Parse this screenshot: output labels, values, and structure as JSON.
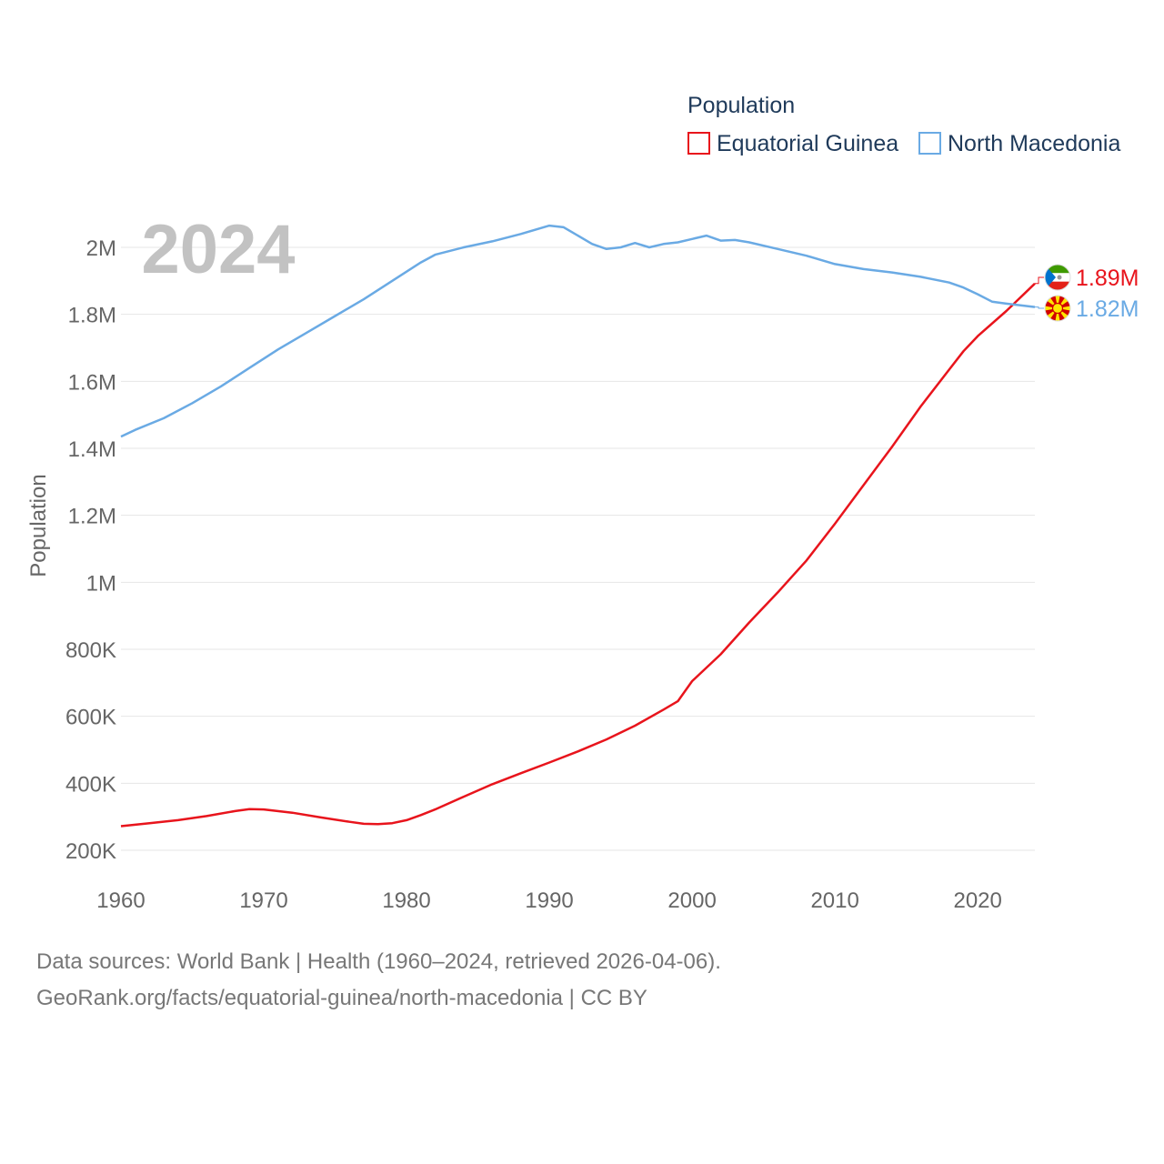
{
  "colors": {
    "eq_guinea": "#e8141c",
    "n_macedonia": "#6aaae4",
    "grid": "#e6e6e6",
    "text": "#666666"
  },
  "footer": {
    "line1": "Data sources: World Bank | Health (1960–2024, retrieved 2026-04-06).",
    "line2": "GeoRank.org/facts/equatorial-guinea/north-macedonia | CC BY"
  },
  "chart_data": {
    "type": "line",
    "title": "",
    "current_year": "2024",
    "xlabel": "",
    "ylabel": "Population",
    "legend_title": "Population",
    "legend_position": "top-right",
    "xlim": [
      1960,
      2024
    ],
    "ylim": [
      200000,
      2100000
    ],
    "x_ticks": [
      1960,
      1970,
      1980,
      1990,
      2000,
      2010,
      2020
    ],
    "y_ticks": [
      {
        "value": 200000,
        "label": "200K"
      },
      {
        "value": 400000,
        "label": "400K"
      },
      {
        "value": 600000,
        "label": "600K"
      },
      {
        "value": 800000,
        "label": "800K"
      },
      {
        "value": 1000000,
        "label": "1M"
      },
      {
        "value": 1200000,
        "label": "1.2M"
      },
      {
        "value": 1400000,
        "label": "1.4M"
      },
      {
        "value": 1600000,
        "label": "1.6M"
      },
      {
        "value": 1800000,
        "label": "1.8M"
      },
      {
        "value": 2000000,
        "label": "2M"
      }
    ],
    "grid": true,
    "series": [
      {
        "name": "Equatorial Guinea",
        "color": "#e8141c",
        "end_label": "1.89M",
        "flag": "equatorial-guinea-flag-icon",
        "points": [
          [
            1960,
            272000
          ],
          [
            1962,
            281000
          ],
          [
            1964,
            290000
          ],
          [
            1966,
            302000
          ],
          [
            1968,
            317000
          ],
          [
            1969,
            323000
          ],
          [
            1970,
            322000
          ],
          [
            1972,
            312000
          ],
          [
            1974,
            298000
          ],
          [
            1976,
            285000
          ],
          [
            1977,
            279000
          ],
          [
            1978,
            278000
          ],
          [
            1979,
            281000
          ],
          [
            1980,
            290000
          ],
          [
            1981,
            305000
          ],
          [
            1982,
            322000
          ],
          [
            1984,
            360000
          ],
          [
            1986,
            397000
          ],
          [
            1988,
            430000
          ],
          [
            1990,
            462000
          ],
          [
            1992,
            495000
          ],
          [
            1994,
            531000
          ],
          [
            1996,
            572000
          ],
          [
            1998,
            620000
          ],
          [
            1999,
            645000
          ],
          [
            2000,
            705000
          ],
          [
            2002,
            785000
          ],
          [
            2004,
            880000
          ],
          [
            2006,
            970000
          ],
          [
            2008,
            1065000
          ],
          [
            2010,
            1175000
          ],
          [
            2012,
            1290000
          ],
          [
            2014,
            1405000
          ],
          [
            2016,
            1525000
          ],
          [
            2018,
            1635000
          ],
          [
            2019,
            1690000
          ],
          [
            2020,
            1735000
          ],
          [
            2022,
            1810000
          ],
          [
            2024,
            1892000
          ]
        ]
      },
      {
        "name": "North Macedonia",
        "color": "#6aaae4",
        "end_label": "1.82M",
        "flag": "north-macedonia-flag-icon",
        "points": [
          [
            1960,
            1435000
          ],
          [
            1961,
            1455000
          ],
          [
            1963,
            1490000
          ],
          [
            1965,
            1535000
          ],
          [
            1967,
            1585000
          ],
          [
            1969,
            1640000
          ],
          [
            1971,
            1695000
          ],
          [
            1973,
            1745000
          ],
          [
            1975,
            1795000
          ],
          [
            1977,
            1845000
          ],
          [
            1979,
            1900000
          ],
          [
            1981,
            1955000
          ],
          [
            1982,
            1978000
          ],
          [
            1984,
            2000000
          ],
          [
            1986,
            2018000
          ],
          [
            1988,
            2040000
          ],
          [
            1990,
            2065000
          ],
          [
            1991,
            2060000
          ],
          [
            1992,
            2035000
          ],
          [
            1993,
            2010000
          ],
          [
            1994,
            1995000
          ],
          [
            1995,
            2000000
          ],
          [
            1996,
            2013000
          ],
          [
            1997,
            2000000
          ],
          [
            1998,
            2010000
          ],
          [
            1999,
            2015000
          ],
          [
            2000,
            2025000
          ],
          [
            2001,
            2035000
          ],
          [
            2002,
            2020000
          ],
          [
            2003,
            2022000
          ],
          [
            2004,
            2015000
          ],
          [
            2006,
            1995000
          ],
          [
            2008,
            1975000
          ],
          [
            2010,
            1950000
          ],
          [
            2012,
            1935000
          ],
          [
            2014,
            1925000
          ],
          [
            2016,
            1912000
          ],
          [
            2018,
            1895000
          ],
          [
            2019,
            1880000
          ],
          [
            2020,
            1860000
          ],
          [
            2021,
            1838000
          ],
          [
            2022,
            1832000
          ],
          [
            2024,
            1822000
          ]
        ]
      }
    ]
  }
}
